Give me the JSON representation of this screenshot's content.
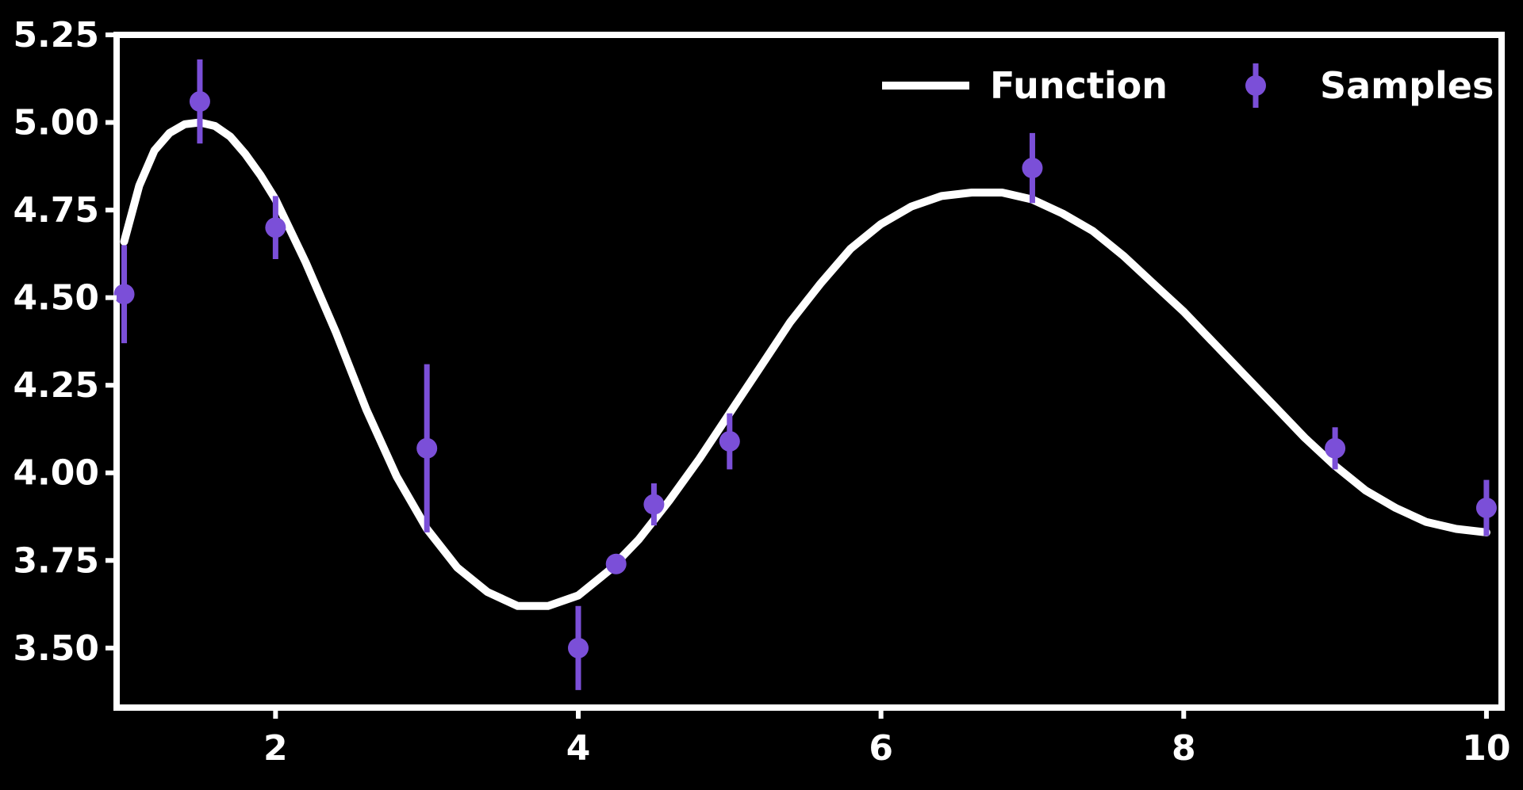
{
  "chart_data": {
    "type": "line",
    "title": "",
    "xlabel": "",
    "ylabel": "",
    "xlim": [
      0.95,
      10.1
    ],
    "ylim": [
      3.33,
      5.25
    ],
    "x_ticks": [
      2,
      4,
      6,
      8,
      10
    ],
    "y_ticks": [
      3.5,
      3.75,
      4.0,
      4.25,
      4.5,
      4.75,
      5.0,
      5.25
    ],
    "x_tick_labels": [
      "2",
      "4",
      "6",
      "8",
      "10"
    ],
    "y_tick_labels": [
      "3.50",
      "3.75",
      "4.00",
      "4.25",
      "4.50",
      "4.75",
      "5.00",
      "5.25"
    ],
    "grid": false,
    "legend_position": "top-right",
    "series": [
      {
        "name": "Function",
        "kind": "line",
        "color": "#ffffff",
        "x": [
          1.0,
          1.1,
          1.2,
          1.3,
          1.4,
          1.5,
          1.6,
          1.7,
          1.8,
          1.9,
          2.0,
          2.2,
          2.4,
          2.6,
          2.8,
          3.0,
          3.2,
          3.4,
          3.6,
          3.8,
          4.0,
          4.2,
          4.4,
          4.6,
          4.8,
          5.0,
          5.2,
          5.4,
          5.6,
          5.8,
          6.0,
          6.2,
          6.4,
          6.6,
          6.8,
          7.0,
          7.2,
          7.4,
          7.6,
          7.8,
          8.0,
          8.2,
          8.4,
          8.6,
          8.8,
          9.0,
          9.2,
          9.4,
          9.6,
          9.8,
          10.0
        ],
        "y": [
          4.66,
          4.82,
          4.92,
          4.97,
          4.995,
          5.0,
          4.99,
          4.96,
          4.91,
          4.85,
          4.78,
          4.6,
          4.4,
          4.18,
          3.99,
          3.84,
          3.73,
          3.66,
          3.62,
          3.62,
          3.65,
          3.72,
          3.81,
          3.92,
          4.04,
          4.17,
          4.3,
          4.43,
          4.54,
          4.64,
          4.71,
          4.76,
          4.79,
          4.8,
          4.8,
          4.78,
          4.74,
          4.69,
          4.62,
          4.54,
          4.46,
          4.37,
          4.28,
          4.19,
          4.1,
          4.02,
          3.95,
          3.9,
          3.86,
          3.84,
          3.83
        ]
      },
      {
        "name": "Samples",
        "kind": "errorbar",
        "color": "#7b4fd8",
        "x": [
          1.0,
          1.5,
          2.0,
          3.0,
          4.0,
          4.25,
          4.5,
          5.0,
          7.0,
          9.0,
          10.0
        ],
        "y": [
          4.51,
          5.06,
          4.7,
          4.07,
          3.5,
          3.74,
          3.91,
          4.09,
          4.87,
          4.07,
          3.9
        ],
        "yerr": [
          0.14,
          0.12,
          0.09,
          0.24,
          0.12,
          0.0,
          0.06,
          0.08,
          0.1,
          0.06,
          0.08
        ]
      }
    ]
  }
}
